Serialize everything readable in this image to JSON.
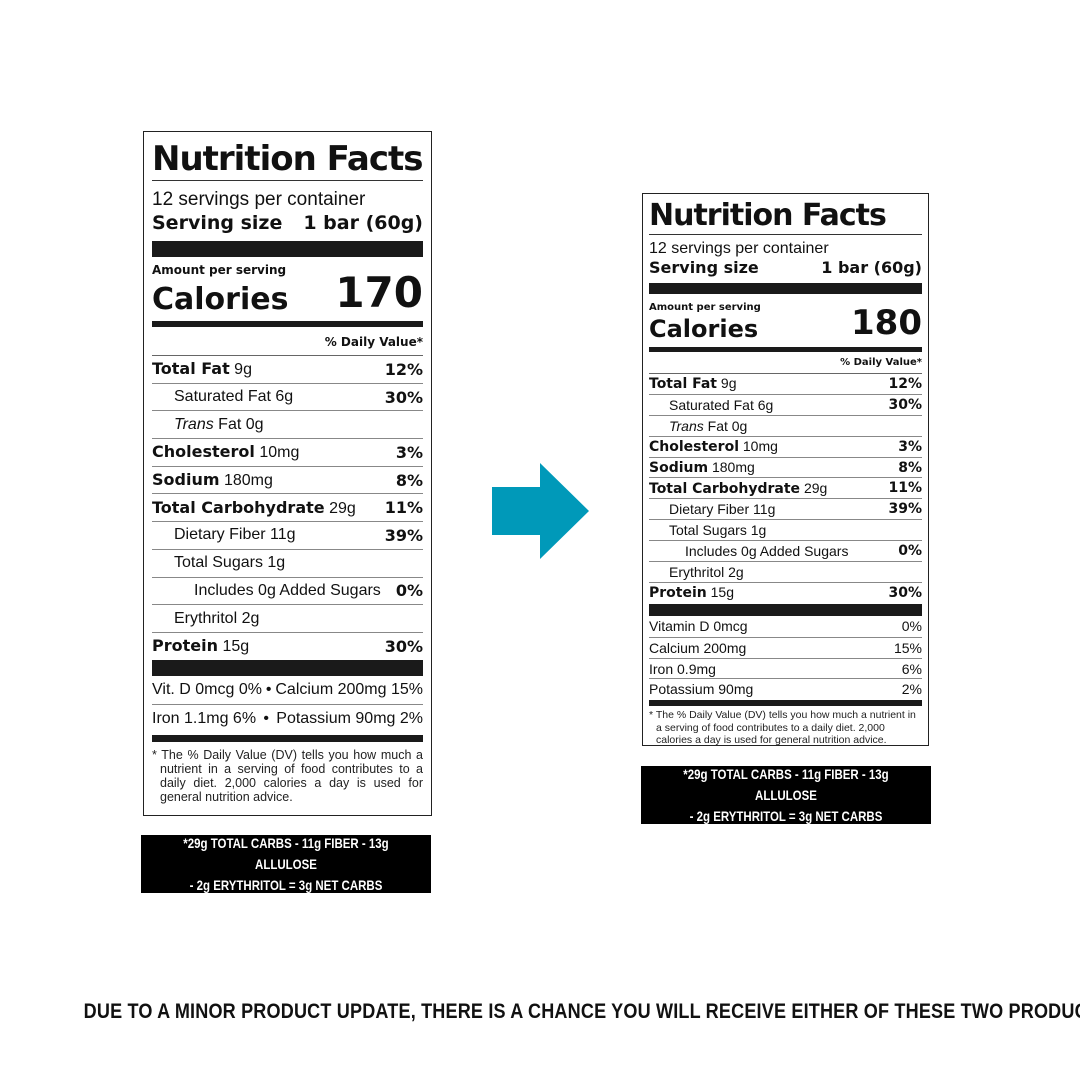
{
  "colors": {
    "arrow": "#0099b9",
    "background": "#ffffff",
    "label_text": "#111111"
  },
  "left_label": {
    "title": "Nutrition Facts",
    "servings": "12 servings per container",
    "serving_size_label": "Serving size",
    "serving_size_value": "1 bar (60g)",
    "amount_per_serving": "Amount per serving",
    "calories_label": "Calories",
    "calories_value": "170",
    "dv_header": "% Daily Value*",
    "rows": [
      {
        "bold": "Total Fat",
        "amount": "9g",
        "dv": "12%",
        "indent": 0
      },
      {
        "name": "Saturated Fat",
        "amount": "6g",
        "dv": "30%",
        "indent": 1
      },
      {
        "italic": "Trans",
        "name": "Fat",
        "amount": "0g",
        "dv": "",
        "indent": 1
      },
      {
        "bold": "Cholesterol",
        "amount": "10mg",
        "dv": "3%",
        "indent": 0
      },
      {
        "bold": "Sodium",
        "amount": "180mg",
        "dv": "8%",
        "indent": 0
      },
      {
        "bold": "Total Carbohydrate",
        "amount": "29g",
        "dv": "11%",
        "indent": 0
      },
      {
        "name": "Dietary Fiber",
        "amount": "11g",
        "dv": "39%",
        "indent": 1
      },
      {
        "name": "Total Sugars",
        "amount": "1g",
        "dv": "",
        "indent": 1
      },
      {
        "name": "Includes 0g Added Sugars",
        "amount": "",
        "dv": "0%",
        "indent": 2
      },
      {
        "name": "Erythritol",
        "amount": "2g",
        "dv": "",
        "indent": 1
      },
      {
        "bold": "Protein",
        "amount": "15g",
        "dv": "30%",
        "indent": 0
      }
    ],
    "vitamins": [
      {
        "left": "Vit. D 0mcg 0%",
        "right": "Calcium 200mg 15%"
      },
      {
        "left": "Iron 1.1mg 6%",
        "right": "Potassium 90mg 2%"
      }
    ],
    "bullet": "•",
    "footnote": "* The % Daily Value (DV) tells you how much a nutrient in a serving of food contributes to a daily diet. 2,000 calories a day is used for general nutrition advice.",
    "net_carbs_line1": "*29g TOTAL CARBS - 11g FIBER - 13g ALLULOSE",
    "net_carbs_line2": "- 2g ERYTHRITOL = 3g NET CARBS"
  },
  "right_label": {
    "title": "Nutrition Facts",
    "servings": "12 servings per container",
    "serving_size_label": "Serving size",
    "serving_size_value": "1 bar (60g)",
    "amount_per_serving": "Amount per serving",
    "calories_label": "Calories",
    "calories_value": "180",
    "dv_header": "% Daily Value*",
    "rows": [
      {
        "bold": "Total Fat",
        "amount": "9g",
        "dv": "12%",
        "indent": 0
      },
      {
        "name": "Saturated Fat",
        "amount": "6g",
        "dv": "30%",
        "indent": 1
      },
      {
        "italic": "Trans",
        "name": "Fat",
        "amount": "0g",
        "dv": "",
        "indent": 1
      },
      {
        "bold": "Cholesterol",
        "amount": "10mg",
        "dv": "3%",
        "indent": 0
      },
      {
        "bold": "Sodium",
        "amount": "180mg",
        "dv": "8%",
        "indent": 0
      },
      {
        "bold": "Total Carbohydrate",
        "amount": "29g",
        "dv": "11%",
        "indent": 0
      },
      {
        "name": "Dietary Fiber",
        "amount": "11g",
        "dv": "39%",
        "indent": 1
      },
      {
        "name": "Total Sugars",
        "amount": "1g",
        "dv": "",
        "indent": 1
      },
      {
        "name": "Includes 0g Added Sugars",
        "amount": "",
        "dv": "0%",
        "indent": 2
      },
      {
        "name": "Erythritol",
        "amount": "2g",
        "dv": "",
        "indent": 1
      },
      {
        "bold": "Protein",
        "amount": "15g",
        "dv": "30%",
        "indent": 0
      }
    ],
    "vitamins": [
      {
        "name": "Vitamin D 0mcg",
        "dv": "0%"
      },
      {
        "name": "Calcium 200mg",
        "dv": "15%"
      },
      {
        "name": "Iron 0.9mg",
        "dv": "6%"
      },
      {
        "name": "Potassium 90mg",
        "dv": "2%"
      }
    ],
    "footnote": "* The % Daily Value (DV) tells you how much a nutrient in a serving of food contributes to a daily diet. 2,000 calories a day is used for general nutrition advice.",
    "net_carbs_line1": "*29g TOTAL CARBS - 11g FIBER - 13g ALLULOSE",
    "net_carbs_line2": "- 2g ERYTHRITOL = 3g NET CARBS"
  },
  "arrow_icon": "arrow-right-icon",
  "disclaimer": "DUE TO A MINOR PRODUCT UPDATE, THERE IS A CHANCE YOU WILL RECEIVE EITHER OF THESE TWO PRODUCTS"
}
